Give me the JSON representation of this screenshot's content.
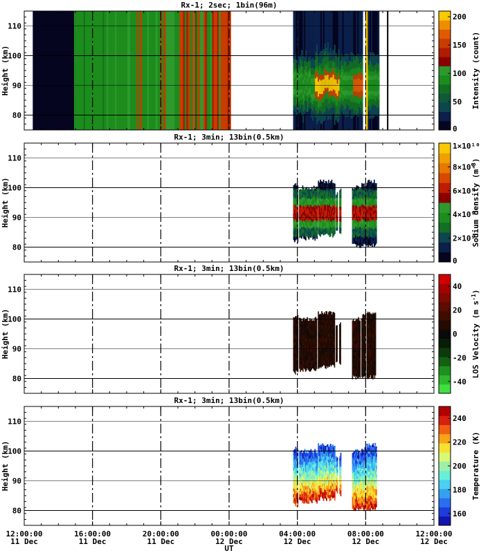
{
  "chart_data": [
    {
      "type": "heatmap",
      "title": "Rx-1;  2sec; 1bin(96m)",
      "ylabel": "Height (km)",
      "ylim": [
        75,
        115
      ],
      "yticks": [
        80,
        90,
        100,
        110
      ],
      "colorbar_label": "Intensity (count)",
      "colorbar_range": [
        0,
        210
      ],
      "colorbar_ticks": [
        "0",
        "50",
        "100",
        "150",
        "200"
      ],
      "colorbar_colors": [
        "#05051f",
        "#0b1f4a",
        "#0d4650",
        "#0e5a3a",
        "#136f22",
        "#1c8c1c",
        "#2e9a2e",
        "#8a0000",
        "#b01c00",
        "#c83c00",
        "#e05a00",
        "#f08c00",
        "#f8c800"
      ],
      "data_blocks": [
        {
          "t0": "2013-12-11 12:30",
          "t1": "2013-12-11 14:55",
          "level": "background-dark"
        },
        {
          "t0": "2013-12-11 14:55",
          "t1": "2013-12-11 18:30",
          "level": "mid-green"
        },
        {
          "t0": "2013-12-11 18:30",
          "t1": "2013-12-12 00:00",
          "level": "green-red-stripes"
        },
        {
          "t0": "2013-12-12 03:45",
          "t1": "2013-12-12 08:45",
          "level": "layer-peak-90km"
        }
      ]
    },
    {
      "type": "heatmap",
      "title": "Rx-1; 3min; 13bin(0.5km)",
      "ylabel": "Height (km)",
      "ylim": [
        75,
        115
      ],
      "yticks": [
        80,
        90,
        100,
        110
      ],
      "colorbar_label": "Sodium density (m^-3)",
      "colorbar_range": [
        0,
        10000000000
      ],
      "colorbar_ticks": [
        "0",
        "2×10⁹",
        "4×10⁹",
        "6×10⁹",
        "8×10⁹",
        "1×10¹⁰"
      ],
      "colorbar_colors": [
        "#05051f",
        "#0b1f4a",
        "#0d4650",
        "#136f22",
        "#1c8c1c",
        "#2e9a2e",
        "#8a0000",
        "#c01c00",
        "#d84800",
        "#e87800",
        "#f0a000",
        "#f8c800"
      ]
    },
    {
      "type": "heatmap",
      "title": "Rx-1; 3min; 13bin(0.5km)",
      "ylabel": "Height (km)",
      "ylim": [
        75,
        115
      ],
      "yticks": [
        80,
        90,
        100,
        110
      ],
      "colorbar_label": "LOS Velocity (m s^-1)",
      "colorbar_range": [
        -50,
        50
      ],
      "colorbar_ticks": [
        "-40",
        "-20",
        "0",
        "20",
        "40"
      ],
      "colorbar_colors": [
        "#3fe03f",
        "#2cb82c",
        "#1f8f1f",
        "#136013",
        "#0c3a0c",
        "#081c08",
        "#0a0a0a",
        "#250a00",
        "#3f0c00",
        "#5c0c00",
        "#800a00",
        "#a80000",
        "#d00000"
      ]
    },
    {
      "type": "heatmap",
      "title": "Rx-1; 3min; 13bin(0.5km)",
      "ylabel": "Height (km)",
      "ylim": [
        75,
        115
      ],
      "yticks": [
        80,
        90,
        100,
        110
      ],
      "colorbar_label": "Temperature (K)",
      "colorbar_range": [
        150,
        250
      ],
      "colorbar_ticks": [
        "160",
        "180",
        "200",
        "220",
        "240"
      ],
      "colorbar_colors": [
        "#1414b0",
        "#1e3cdc",
        "#2a6ef0",
        "#36a0f0",
        "#4ad0f0",
        "#66f0d8",
        "#9ef0a8",
        "#d8f878",
        "#f8e030",
        "#f8a418",
        "#f06010",
        "#d82010",
        "#b00000"
      ]
    }
  ],
  "x_axis": {
    "label": "UT",
    "range": [
      "2013-12-11 12:00:00",
      "2013-12-12 12:00:00"
    ],
    "ticks": [
      {
        "time": "12:00:00",
        "date": "11 Dec"
      },
      {
        "time": "16:00:00",
        "date": "11 Dec"
      },
      {
        "time": "20:00:00",
        "date": "11 Dec"
      },
      {
        "time": "00:00:00",
        "date": "12 Dec"
      },
      {
        "time": "04:00:00",
        "date": "12 Dec"
      },
      {
        "time": "08:00:00",
        "date": "12 Dec"
      },
      {
        "time": "12:00:00",
        "date": "12 Dec"
      }
    ]
  }
}
